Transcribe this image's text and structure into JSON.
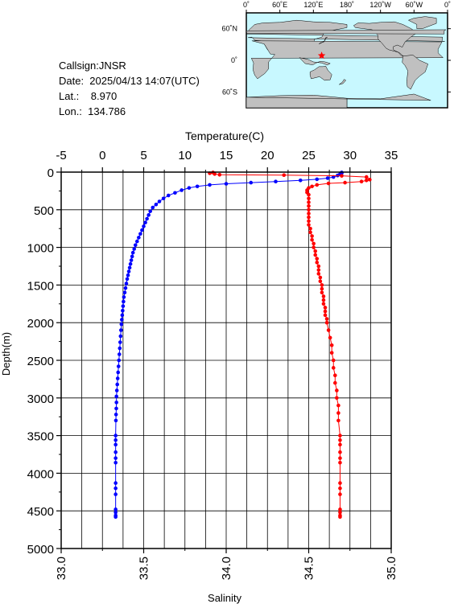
{
  "station": {
    "callsign": "Callsign:JNSR",
    "date": "Date:  2025/04/13 14:07(UTC)",
    "lat": "Lat.:    8.970",
    "lon": "Lon.:  134.786"
  },
  "map": {
    "lon_ticks": [
      "0˚",
      "60˚E",
      "120˚E",
      "180˚",
      "120˚W",
      "60˚W",
      "0˚"
    ],
    "lat_ticks": [
      "60˚N",
      "0˚",
      "60˚S"
    ],
    "colors": {
      "ocean": "#c8f8ff",
      "land": "#c0c0c0",
      "marker": "#ff0000"
    },
    "marker": {
      "lon": 134.786,
      "lat": 8.97,
      "icon": "star-icon"
    }
  },
  "chart_data": {
    "type": "scatter",
    "title": "",
    "top_axis": {
      "label": "Temperature(C)",
      "range": [
        -5,
        35
      ],
      "ticks": [
        "-5",
        "0",
        "5",
        "10",
        "15",
        "20",
        "25",
        "30",
        "35"
      ]
    },
    "bottom_axis": {
      "label": "Salinity",
      "range": [
        33.0,
        35.0
      ],
      "ticks": [
        "33.0",
        "33.5",
        "34.0",
        "34.5",
        "35.0"
      ]
    },
    "y_axis": {
      "label": "Depth(m)",
      "range": [
        0,
        5000
      ],
      "inverted": true,
      "ticks": [
        "0",
        "500",
        "1000",
        "1500",
        "2000",
        "2500",
        "3000",
        "3500",
        "4000",
        "4500",
        "5000"
      ]
    },
    "grid": true,
    "series": [
      {
        "color": "#0000ff",
        "axis": "temperature",
        "points": [
          [
            29.0,
            5
          ],
          [
            29.0,
            15
          ],
          [
            28.8,
            25
          ],
          [
            28.5,
            45
          ],
          [
            28.0,
            65
          ],
          [
            27.3,
            80
          ],
          [
            26.0,
            95
          ],
          [
            24.0,
            110
          ],
          [
            21.0,
            125
          ],
          [
            18.0,
            140
          ],
          [
            15.0,
            155
          ],
          [
            13.0,
            170
          ],
          [
            11.5,
            190
          ],
          [
            10.5,
            210
          ],
          [
            9.6,
            240
          ],
          [
            8.8,
            275
          ],
          [
            8.0,
            310
          ],
          [
            7.4,
            350
          ],
          [
            6.9,
            390
          ],
          [
            6.5,
            430
          ],
          [
            6.1,
            470
          ],
          [
            5.8,
            520
          ],
          [
            5.6,
            570
          ],
          [
            5.4,
            620
          ],
          [
            5.2,
            670
          ],
          [
            5.0,
            720
          ],
          [
            4.8,
            770
          ],
          [
            4.6,
            820
          ],
          [
            4.4,
            870
          ],
          [
            4.2,
            920
          ],
          [
            4.0,
            970
          ],
          [
            3.85,
            1020
          ],
          [
            3.7,
            1070
          ],
          [
            3.6,
            1120
          ],
          [
            3.5,
            1170
          ],
          [
            3.4,
            1220
          ],
          [
            3.3,
            1270
          ],
          [
            3.2,
            1320
          ],
          [
            3.1,
            1370
          ],
          [
            3.0,
            1420
          ],
          [
            2.9,
            1480
          ],
          [
            2.8,
            1540
          ],
          [
            2.7,
            1600
          ],
          [
            2.6,
            1660
          ],
          [
            2.55,
            1720
          ],
          [
            2.5,
            1780
          ],
          [
            2.45,
            1840
          ],
          [
            2.4,
            1900
          ],
          [
            2.35,
            1960
          ],
          [
            2.3,
            2020
          ],
          [
            2.25,
            2100
          ],
          [
            2.2,
            2180
          ],
          [
            2.15,
            2260
          ],
          [
            2.1,
            2340
          ],
          [
            2.05,
            2420
          ],
          [
            2.0,
            2500
          ],
          [
            1.95,
            2580
          ],
          [
            1.9,
            2660
          ],
          [
            1.85,
            2740
          ],
          [
            1.8,
            2820
          ],
          [
            1.75,
            2900
          ],
          [
            1.7,
            2980
          ],
          [
            1.7,
            3060
          ],
          [
            1.68,
            3140
          ],
          [
            1.65,
            3220
          ],
          [
            1.63,
            3300
          ],
          [
            1.6,
            3500
          ],
          [
            1.6,
            3560
          ],
          [
            1.6,
            3620
          ],
          [
            1.6,
            3720
          ],
          [
            1.6,
            3800
          ],
          [
            1.6,
            3860
          ],
          [
            1.6,
            4130
          ],
          [
            1.6,
            4200
          ],
          [
            1.6,
            4280
          ],
          [
            1.6,
            4480
          ],
          [
            1.6,
            4520
          ],
          [
            1.6,
            4560
          ],
          [
            1.6,
            4580
          ]
        ]
      },
      {
        "color": "#ff0000",
        "axis": "salinity",
        "points": [
          [
            33.92,
            5
          ],
          [
            33.9,
            15
          ],
          [
            33.93,
            25
          ],
          [
            33.96,
            35
          ],
          [
            34.35,
            40
          ],
          [
            34.7,
            50
          ],
          [
            34.85,
            65
          ],
          [
            34.87,
            100
          ],
          [
            34.85,
            110
          ],
          [
            34.82,
            125
          ],
          [
            34.72,
            140
          ],
          [
            34.62,
            150
          ],
          [
            34.55,
            170
          ],
          [
            34.52,
            190
          ],
          [
            34.5,
            210
          ],
          [
            34.49,
            240
          ],
          [
            34.49,
            270
          ],
          [
            34.5,
            300
          ],
          [
            34.5,
            350
          ],
          [
            34.5,
            400
          ],
          [
            34.5,
            450
          ],
          [
            34.5,
            500
          ],
          [
            34.5,
            550
          ],
          [
            34.5,
            600
          ],
          [
            34.5,
            650
          ],
          [
            34.5,
            700
          ],
          [
            34.51,
            750
          ],
          [
            34.51,
            800
          ],
          [
            34.52,
            850
          ],
          [
            34.52,
            900
          ],
          [
            34.53,
            950
          ],
          [
            34.53,
            1000
          ],
          [
            34.54,
            1050
          ],
          [
            34.54,
            1100
          ],
          [
            34.55,
            1150
          ],
          [
            34.55,
            1200
          ],
          [
            34.56,
            1250
          ],
          [
            34.56,
            1300
          ],
          [
            34.56,
            1350
          ],
          [
            34.57,
            1400
          ],
          [
            34.57,
            1450
          ],
          [
            34.58,
            1500
          ],
          [
            34.58,
            1550
          ],
          [
            34.58,
            1600
          ],
          [
            34.59,
            1650
          ],
          [
            34.59,
            1700
          ],
          [
            34.59,
            1750
          ],
          [
            34.6,
            1800
          ],
          [
            34.6,
            1850
          ],
          [
            34.6,
            1900
          ],
          [
            34.61,
            1950
          ],
          [
            34.61,
            2000
          ],
          [
            34.62,
            2100
          ],
          [
            34.63,
            2200
          ],
          [
            34.64,
            2300
          ],
          [
            34.64,
            2400
          ],
          [
            34.65,
            2500
          ],
          [
            34.65,
            2600
          ],
          [
            34.66,
            2700
          ],
          [
            34.66,
            2800
          ],
          [
            34.67,
            2900
          ],
          [
            34.67,
            3000
          ],
          [
            34.68,
            3100
          ],
          [
            34.68,
            3200
          ],
          [
            34.68,
            3300
          ],
          [
            34.69,
            3500
          ],
          [
            34.69,
            3560
          ],
          [
            34.69,
            3620
          ],
          [
            34.69,
            3720
          ],
          [
            34.69,
            3800
          ],
          [
            34.69,
            3860
          ],
          [
            34.69,
            4130
          ],
          [
            34.69,
            4200
          ],
          [
            34.69,
            4280
          ],
          [
            34.69,
            4480
          ],
          [
            34.69,
            4520
          ],
          [
            34.69,
            4560
          ],
          [
            34.69,
            4580
          ]
        ]
      }
    ]
  }
}
